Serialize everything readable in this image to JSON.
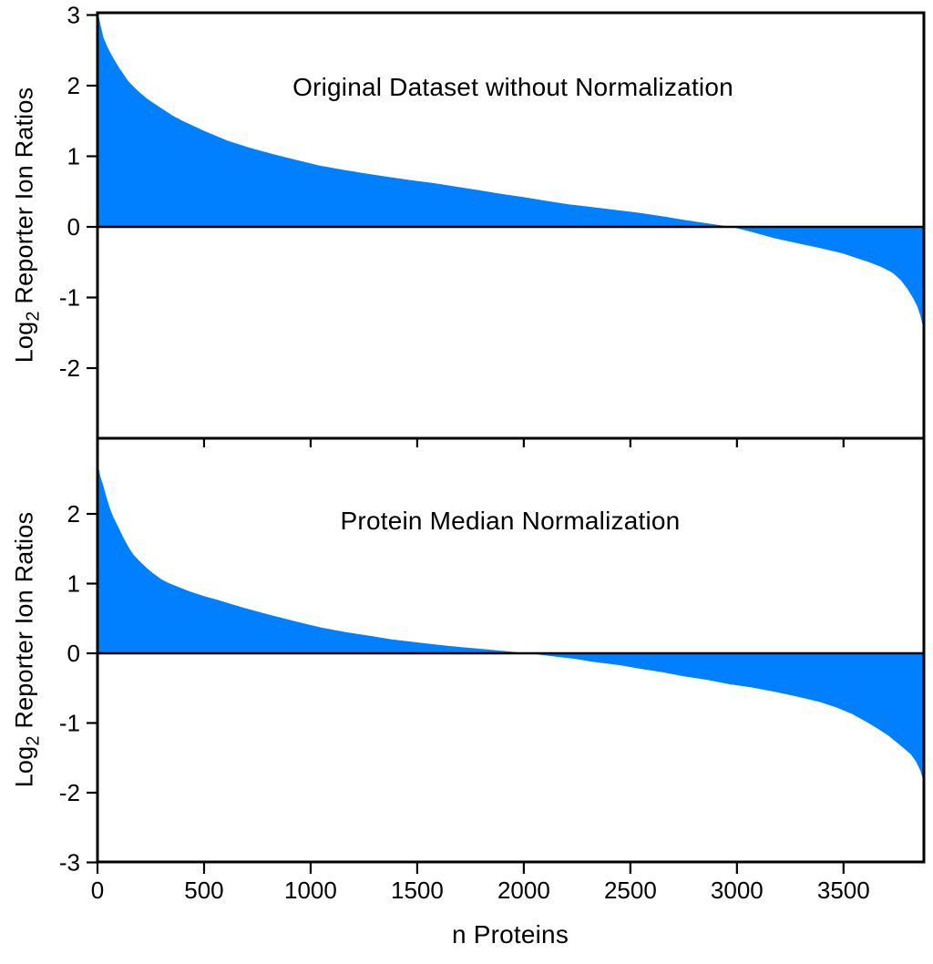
{
  "figure": {
    "xlabel": "n Proteins",
    "ylabel": {
      "pre": "Log",
      "sub": "2",
      "post": " Reporter Ion Ratios"
    },
    "fill_color": "#0080FF",
    "axis_color": "#000000",
    "background": "#FFFFFF"
  },
  "chart_data": [
    {
      "type": "area",
      "title": "Original Dataset without Normalization",
      "xlabel": "n Proteins",
      "ylabel": "Log2 Reporter Ion Ratios",
      "xlim": [
        0,
        3877
      ],
      "ylim": [
        -3,
        3
      ],
      "xticks": [
        0,
        500,
        1000,
        1500,
        2000,
        2500,
        3000,
        3500
      ],
      "yticks": [
        3,
        2,
        1,
        0,
        -1,
        -2
      ],
      "grid": false,
      "legend": false,
      "zero_crossing_x": 2975,
      "points": [
        [
          0,
          3.05
        ],
        [
          6,
          2.98
        ],
        [
          14,
          2.86
        ],
        [
          28,
          2.68
        ],
        [
          45,
          2.56
        ],
        [
          60,
          2.47
        ],
        [
          80,
          2.36
        ],
        [
          100,
          2.26
        ],
        [
          125,
          2.15
        ],
        [
          145,
          2.06
        ],
        [
          185,
          1.94
        ],
        [
          230,
          1.82
        ],
        [
          270,
          1.74
        ],
        [
          315,
          1.65
        ],
        [
          355,
          1.57
        ],
        [
          400,
          1.5
        ],
        [
          500,
          1.36
        ],
        [
          610,
          1.22
        ],
        [
          715,
          1.12
        ],
        [
          825,
          1.03
        ],
        [
          930,
          0.95
        ],
        [
          1040,
          0.87
        ],
        [
          1150,
          0.81
        ],
        [
          1250,
          0.76
        ],
        [
          1360,
          0.71
        ],
        [
          1470,
          0.66
        ],
        [
          1575,
          0.62
        ],
        [
          1680,
          0.57
        ],
        [
          1790,
          0.52
        ],
        [
          1890,
          0.47
        ],
        [
          2000,
          0.42
        ],
        [
          2100,
          0.37
        ],
        [
          2210,
          0.32
        ],
        [
          2320,
          0.28
        ],
        [
          2430,
          0.24
        ],
        [
          2540,
          0.2
        ],
        [
          2650,
          0.15
        ],
        [
          2750,
          0.1
        ],
        [
          2860,
          0.05
        ],
        [
          2975,
          0.0
        ],
        [
          3080,
          -0.08
        ],
        [
          3175,
          -0.16
        ],
        [
          3280,
          -0.23
        ],
        [
          3390,
          -0.3
        ],
        [
          3490,
          -0.37
        ],
        [
          3560,
          -0.44
        ],
        [
          3620,
          -0.5
        ],
        [
          3680,
          -0.57
        ],
        [
          3730,
          -0.65
        ],
        [
          3770,
          -0.76
        ],
        [
          3800,
          -0.88
        ],
        [
          3825,
          -1.0
        ],
        [
          3845,
          -1.12
        ],
        [
          3860,
          -1.25
        ],
        [
          3870,
          -1.38
        ],
        [
          3877,
          -1.5
        ]
      ]
    },
    {
      "type": "area",
      "title": "Protein Median Normalization",
      "xlabel": "n Proteins",
      "ylabel": "Log2 Reporter Ion Ratios",
      "xlim": [
        0,
        3877
      ],
      "ylim": [
        -3,
        3
      ],
      "xticks": [
        0,
        500,
        1000,
        1500,
        2000,
        2500,
        3000,
        3500
      ],
      "yticks": [
        2,
        1,
        0,
        -1,
        -2,
        -3
      ],
      "grid": false,
      "legend": false,
      "zero_crossing_x": 2020,
      "points": [
        [
          0,
          2.72
        ],
        [
          5,
          2.66
        ],
        [
          15,
          2.52
        ],
        [
          26,
          2.42
        ],
        [
          40,
          2.26
        ],
        [
          56,
          2.1
        ],
        [
          75,
          1.95
        ],
        [
          98,
          1.81
        ],
        [
          115,
          1.7
        ],
        [
          130,
          1.61
        ],
        [
          150,
          1.5
        ],
        [
          170,
          1.41
        ],
        [
          195,
          1.33
        ],
        [
          215,
          1.27
        ],
        [
          240,
          1.2
        ],
        [
          260,
          1.15
        ],
        [
          300,
          1.06
        ],
        [
          340,
          1.0
        ],
        [
          390,
          0.94
        ],
        [
          430,
          0.89
        ],
        [
          500,
          0.82
        ],
        [
          560,
          0.77
        ],
        [
          625,
          0.71
        ],
        [
          690,
          0.65
        ],
        [
          750,
          0.6
        ],
        [
          810,
          0.55
        ],
        [
          875,
          0.5
        ],
        [
          940,
          0.45
        ],
        [
          1050,
          0.37
        ],
        [
          1170,
          0.3
        ],
        [
          1280,
          0.25
        ],
        [
          1380,
          0.2
        ],
        [
          1490,
          0.16
        ],
        [
          1600,
          0.12
        ],
        [
          1700,
          0.09
        ],
        [
          1810,
          0.06
        ],
        [
          1920,
          0.03
        ],
        [
          2020,
          0.0
        ],
        [
          2130,
          -0.04
        ],
        [
          2240,
          -0.08
        ],
        [
          2320,
          -0.12
        ],
        [
          2450,
          -0.17
        ],
        [
          2540,
          -0.22
        ],
        [
          2650,
          -0.27
        ],
        [
          2750,
          -0.33
        ],
        [
          2860,
          -0.38
        ],
        [
          2960,
          -0.44
        ],
        [
          3070,
          -0.49
        ],
        [
          3175,
          -0.55
        ],
        [
          3280,
          -0.62
        ],
        [
          3390,
          -0.7
        ],
        [
          3470,
          -0.78
        ],
        [
          3540,
          -0.87
        ],
        [
          3600,
          -0.97
        ],
        [
          3660,
          -1.08
        ],
        [
          3710,
          -1.18
        ],
        [
          3750,
          -1.28
        ],
        [
          3790,
          -1.38
        ],
        [
          3816,
          -1.45
        ],
        [
          3840,
          -1.55
        ],
        [
          3860,
          -1.68
        ],
        [
          3877,
          -1.85
        ]
      ]
    }
  ]
}
